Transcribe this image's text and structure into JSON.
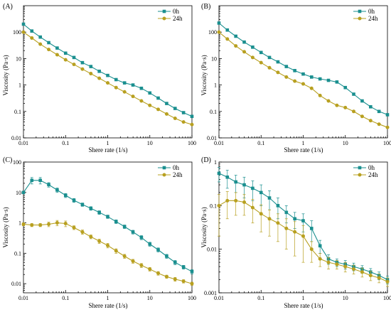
{
  "chart_data": [
    {
      "panel": "(A)",
      "type": "line",
      "xscale": "log",
      "yscale": "log",
      "xlim": [
        0.01,
        100
      ],
      "ylim": [
        0.01,
        1000
      ],
      "xlabel": "Shere rate (1/s)",
      "ylabel": "Viscosity (Pa·s)",
      "xticks": [
        "0.01",
        "0.1",
        "1",
        "10",
        "100"
      ],
      "yticks": [
        "0.01",
        "0.1",
        "1",
        "10",
        "100"
      ],
      "legend": "top-right",
      "series": [
        {
          "name": "0h",
          "color": "#1a8f8f",
          "marker": "square",
          "x": [
            0.01,
            0.0158,
            0.0251,
            0.0398,
            0.0631,
            0.1,
            0.158,
            0.251,
            0.398,
            0.631,
            1,
            1.58,
            2.51,
            3.98,
            6.31,
            10,
            15.8,
            25.1,
            39.8,
            63.1,
            100
          ],
          "y": [
            200,
            110,
            65,
            40,
            25,
            16,
            11,
            7,
            5,
            3.3,
            2.3,
            1.6,
            1.2,
            1.0,
            0.75,
            0.5,
            0.32,
            0.2,
            0.13,
            0.09,
            0.065
          ]
        },
        {
          "name": "24h",
          "color": "#b8a020",
          "marker": "circle",
          "x": [
            0.01,
            0.0158,
            0.0251,
            0.0398,
            0.0631,
            0.1,
            0.158,
            0.251,
            0.398,
            0.631,
            1,
            1.58,
            2.51,
            3.98,
            6.31,
            10,
            15.8,
            25.1,
            39.8,
            63.1,
            100
          ],
          "y": [
            100,
            60,
            35,
            22,
            14,
            9,
            6,
            4,
            2.7,
            1.8,
            1.2,
            0.8,
            0.55,
            0.37,
            0.25,
            0.17,
            0.12,
            0.08,
            0.055,
            0.04,
            0.032
          ]
        }
      ]
    },
    {
      "panel": "(B)",
      "type": "line",
      "xscale": "log",
      "yscale": "log",
      "xlim": [
        0.01,
        100
      ],
      "ylim": [
        0.01,
        1000
      ],
      "xlabel": "Shere rate (1/s)",
      "ylabel": "Viscosity (Pa·s)",
      "xticks": [
        "0.01",
        "0.1",
        "1",
        "10",
        "100"
      ],
      "yticks": [
        "0.01",
        "0.1",
        "1",
        "10",
        "100"
      ],
      "legend": "top-right",
      "series": [
        {
          "name": "0h",
          "color": "#1a8f8f",
          "marker": "square",
          "x": [
            0.01,
            0.0158,
            0.0251,
            0.0398,
            0.0631,
            0.1,
            0.158,
            0.251,
            0.398,
            0.631,
            1,
            1.58,
            2.51,
            3.98,
            6.31,
            10,
            15.8,
            25.1,
            39.8,
            63.1,
            100
          ],
          "y": [
            220,
            120,
            70,
            42,
            27,
            17,
            11,
            7.5,
            5,
            3.5,
            2.6,
            2.0,
            1.7,
            1.5,
            1.3,
            0.8,
            0.45,
            0.25,
            0.15,
            0.1,
            0.075
          ]
        },
        {
          "name": "24h",
          "color": "#b8a020",
          "marker": "circle",
          "x": [
            0.01,
            0.0158,
            0.0251,
            0.0398,
            0.0631,
            0.1,
            0.158,
            0.251,
            0.398,
            0.631,
            1,
            1.58,
            2.51,
            3.98,
            6.31,
            10,
            15.8,
            25.1,
            39.8,
            63.1,
            100
          ],
          "y": [
            100,
            55,
            30,
            18,
            11,
            7,
            4.5,
            3,
            2,
            1.4,
            1.1,
            0.75,
            0.4,
            0.25,
            0.17,
            0.14,
            0.1,
            0.065,
            0.045,
            0.033,
            0.025
          ]
        }
      ]
    },
    {
      "panel": "(C)",
      "type": "line",
      "xscale": "log",
      "yscale": "log",
      "xlim": [
        0.01,
        100
      ],
      "ylim": [
        0.005,
        100
      ],
      "xlabel": "Shere rate (1/s)",
      "ylabel": "Viscosity (Pa·s)",
      "xticks": [
        "0.01",
        "0.1",
        "1",
        "10",
        "100"
      ],
      "yticks": [
        "0.01",
        "0.1",
        "1",
        "10",
        "100"
      ],
      "legend": "top-right",
      "series": [
        {
          "name": "0h",
          "color": "#1a8f8f",
          "marker": "square",
          "x": [
            0.01,
            0.0158,
            0.0251,
            0.0398,
            0.0631,
            0.1,
            0.158,
            0.251,
            0.398,
            0.631,
            1,
            1.58,
            2.51,
            3.98,
            6.31,
            10,
            15.8,
            25.1,
            39.8,
            63.1,
            100
          ],
          "y": [
            10,
            25,
            25,
            18,
            12,
            8,
            5.5,
            4,
            3,
            2.2,
            1.6,
            1.1,
            0.75,
            0.5,
            0.33,
            0.2,
            0.13,
            0.08,
            0.05,
            0.035,
            0.025
          ],
          "err": [
            0,
            6,
            6,
            3,
            2,
            1.2,
            0.8,
            0.5,
            0.4,
            0.3,
            0.2,
            0.15,
            0.1,
            0.07,
            0.05,
            0.03,
            0.02,
            0.012,
            0.008,
            0.005,
            0.004
          ]
        },
        {
          "name": "24h",
          "color": "#b8a020",
          "marker": "circle",
          "x": [
            0.01,
            0.0158,
            0.0251,
            0.0398,
            0.0631,
            0.1,
            0.158,
            0.251,
            0.398,
            0.631,
            1,
            1.58,
            2.51,
            3.98,
            6.31,
            10,
            15.8,
            25.1,
            39.8,
            63.1,
            100
          ],
          "y": [
            0.9,
            0.85,
            0.85,
            0.9,
            1.0,
            0.95,
            0.7,
            0.5,
            0.35,
            0.25,
            0.18,
            0.12,
            0.08,
            0.055,
            0.04,
            0.03,
            0.022,
            0.017,
            0.014,
            0.012,
            0.01
          ],
          "err": [
            0.1,
            0.1,
            0.1,
            0.15,
            0.2,
            0.2,
            0.1,
            0.08,
            0.05,
            0.04,
            0.03,
            0.02,
            0.012,
            0.008,
            0.006,
            0.004,
            0.003,
            0.002,
            0.002,
            0.0015,
            0.0012
          ]
        }
      ]
    },
    {
      "panel": "(D)",
      "type": "line",
      "xscale": "log",
      "yscale": "log",
      "xlim": [
        0.01,
        100
      ],
      "ylim": [
        0.001,
        1
      ],
      "xlabel": "Shere rate (1/s)",
      "ylabel": "Viscosity (Pa·s)",
      "xticks": [
        "0.01",
        "0.1",
        "1",
        "10",
        "100"
      ],
      "yticks": [
        "0.001",
        "0.01",
        "0.1",
        "1"
      ],
      "legend": "top-right",
      "series": [
        {
          "name": "0h",
          "color": "#1a8f8f",
          "marker": "square",
          "x": [
            0.01,
            0.0158,
            0.0251,
            0.0398,
            0.0631,
            0.1,
            0.158,
            0.251,
            0.398,
            0.631,
            1,
            1.58,
            2.51,
            3.98,
            6.31,
            10,
            15.8,
            25.1,
            39.8,
            63.1,
            100
          ],
          "y": [
            0.55,
            0.45,
            0.35,
            0.3,
            0.25,
            0.2,
            0.15,
            0.1,
            0.07,
            0.05,
            0.045,
            0.03,
            0.012,
            0.006,
            0.005,
            0.0045,
            0.004,
            0.0035,
            0.003,
            0.0025,
            0.002
          ],
          "err": [
            0.2,
            0.2,
            0.15,
            0.15,
            0.12,
            0.1,
            0.07,
            0.05,
            0.03,
            0.02,
            0.02,
            0.015,
            0.004,
            0.0015,
            0.001,
            0.001,
            0.0008,
            0.0007,
            0.0006,
            0.0005,
            0.0004
          ]
        },
        {
          "name": "24h",
          "color": "#b8a020",
          "marker": "circle",
          "x": [
            0.01,
            0.0158,
            0.0251,
            0.0398,
            0.0631,
            0.1,
            0.158,
            0.251,
            0.398,
            0.631,
            1,
            1.58,
            2.51,
            3.98,
            6.31,
            10,
            15.8,
            25.1,
            39.8,
            63.1,
            100
          ],
          "y": [
            0.1,
            0.13,
            0.13,
            0.12,
            0.09,
            0.065,
            0.05,
            0.04,
            0.03,
            0.025,
            0.02,
            0.01,
            0.006,
            0.005,
            0.0045,
            0.004,
            0.0035,
            0.003,
            0.0025,
            0.0022,
            0.0018
          ],
          "err": [
            0.08,
            0.08,
            0.07,
            0.06,
            0.05,
            0.04,
            0.03,
            0.025,
            0.02,
            0.018,
            0.015,
            0.005,
            0.002,
            0.0015,
            0.001,
            0.001,
            0.0008,
            0.0007,
            0.0006,
            0.0005,
            0.0004
          ]
        }
      ]
    }
  ]
}
